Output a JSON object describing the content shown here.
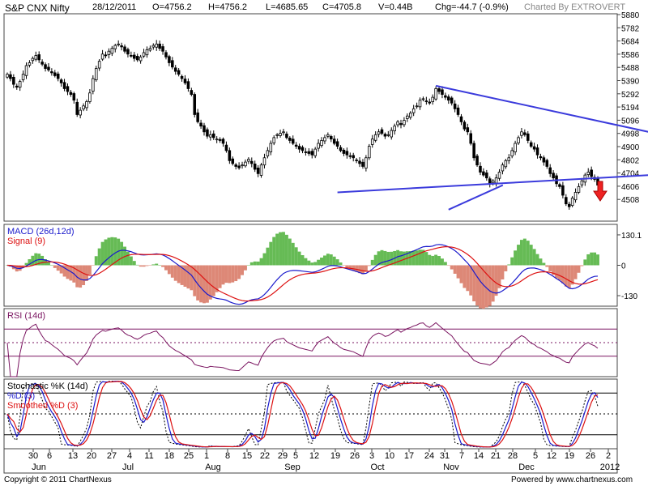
{
  "header": {
    "symbol": "S&P CNX Nifty",
    "date": "28/12/2011",
    "open": "O=4756.2",
    "high": "H=4756.2",
    "low": "L=4685.65",
    "close": "C=4705.8",
    "volume": "V=0.44B",
    "change": "Chg=-44.7 (-0.9%)",
    "charted_by": "Charted By EXTROVERT"
  },
  "footer": {
    "copyright": "Copyright © 2011 ChartNexus",
    "powered": "Powered by www.chartnexus.com"
  },
  "colors": {
    "up": "#ffffff",
    "down": "#000000",
    "trendline": "#3b3bdc",
    "macd": "#1a1acc",
    "signal": "#dd1111",
    "hist_pos": "#66bb55",
    "hist_neg": "#dd8877",
    "rsi": "#7a1460",
    "arrow": "#ee2222"
  },
  "chart_data": [
    {
      "type": "candlestick",
      "title": "S&P CNX Nifty",
      "yticks": [
        "5880",
        "5782",
        "5684",
        "5586",
        "5488",
        "5390",
        "5292",
        "5194",
        "5096",
        "4998",
        "4900",
        "4802",
        "4704",
        "4606",
        "4508"
      ],
      "ylim": [
        4460,
        5900
      ],
      "x_top_labels": [
        "30",
        "6",
        "13",
        "20",
        "27",
        "4",
        "11",
        "18",
        "25",
        "1",
        "8",
        "15",
        "22",
        "29",
        "5",
        "12",
        "19",
        "26",
        "3",
        "10",
        "17",
        "24",
        "31",
        "7",
        "14",
        "21",
        "28",
        "5",
        "12",
        "19",
        "26",
        "2"
      ],
      "month_labels": [
        "Jun",
        "Jul",
        "Aug",
        "Sep",
        "Oct",
        "Nov",
        "Dec",
        "2012"
      ],
      "trendlines": [
        {
          "name": "upper",
          "from": [
            135,
            5400
          ],
          "to": [
            247,
            4840
          ]
        },
        {
          "name": "lower",
          "from": [
            104,
            4660
          ],
          "to": [
            247,
            4840
          ]
        },
        {
          "name": "support",
          "from": [
            139,
            4540
          ],
          "to": [
            151,
            4710
          ]
        }
      ],
      "annotation": "down-arrow",
      "closes": [
        5480,
        5450,
        5410,
        5390,
        5430,
        5480,
        5540,
        5560,
        5590,
        5610,
        5580,
        5550,
        5520,
        5510,
        5490,
        5470,
        5450,
        5420,
        5380,
        5360,
        5340,
        5300,
        5200,
        5230,
        5260,
        5290,
        5350,
        5450,
        5520,
        5570,
        5620,
        5610,
        5640,
        5660,
        5680,
        5690,
        5670,
        5640,
        5620,
        5610,
        5590,
        5580,
        5600,
        5630,
        5650,
        5660,
        5680,
        5690,
        5660,
        5640,
        5600,
        5560,
        5530,
        5500,
        5480,
        5450,
        5420,
        5380,
        5340,
        5200,
        5150,
        5120,
        5080,
        5050,
        5060,
        5040,
        5030,
        5020,
        5000,
        4950,
        4880,
        4860,
        4840,
        4830,
        4850,
        4870,
        4890,
        4860,
        4820,
        4790,
        4850,
        4900,
        4950,
        5000,
        5040,
        5060,
        5070,
        5080,
        5040,
        5020,
        5000,
        4980,
        4960,
        4950,
        4940,
        4930,
        4920,
        4960,
        5000,
        5020,
        5040,
        5060,
        5030,
        5000,
        4980,
        4950,
        4930,
        4920,
        4910,
        4900,
        4880,
        4860,
        4840,
        4900,
        4980,
        5030,
        5060,
        5080,
        5070,
        5050,
        5060,
        5090,
        5120,
        5150,
        5130,
        5160,
        5190,
        5210,
        5240,
        5260,
        5300,
        5310,
        5290,
        5280,
        5320,
        5380,
        5360,
        5340,
        5320,
        5300,
        5280,
        5240,
        5200,
        5150,
        5100,
        5080,
        5000,
        4900,
        4850,
        4800,
        4780,
        4760,
        4720,
        4740,
        4760,
        4800,
        4850,
        4880,
        4900,
        4950,
        5000,
        5040,
        5080,
        5060,
        5020,
        4980,
        4960,
        4920,
        4900,
        4870,
        4840,
        4790,
        4760,
        4720,
        4700,
        4640,
        4580,
        4560,
        4620,
        4660,
        4700,
        4740,
        4780,
        4800,
        4770,
        4750,
        4710
      ],
      "macd": {
        "name": "MACD (26d,12d)",
        "yticks": [
          "130.1",
          "0",
          "-130"
        ],
        "ylim": [
          -175,
          175
        ]
      },
      "signal": {
        "name": "Signal (9)"
      },
      "rsi": {
        "name": "RSI (14d)",
        "ylim": [
          0,
          100
        ],
        "levels": [
          70,
          50,
          30
        ]
      },
      "stochastic": {
        "name": "Stochastic %K (14d)",
        "d_name": "%D (3)",
        "sd_name": "Smoothed %D (3)",
        "ylim": [
          0,
          100
        ],
        "levels": [
          80,
          50,
          20
        ]
      }
    }
  ]
}
